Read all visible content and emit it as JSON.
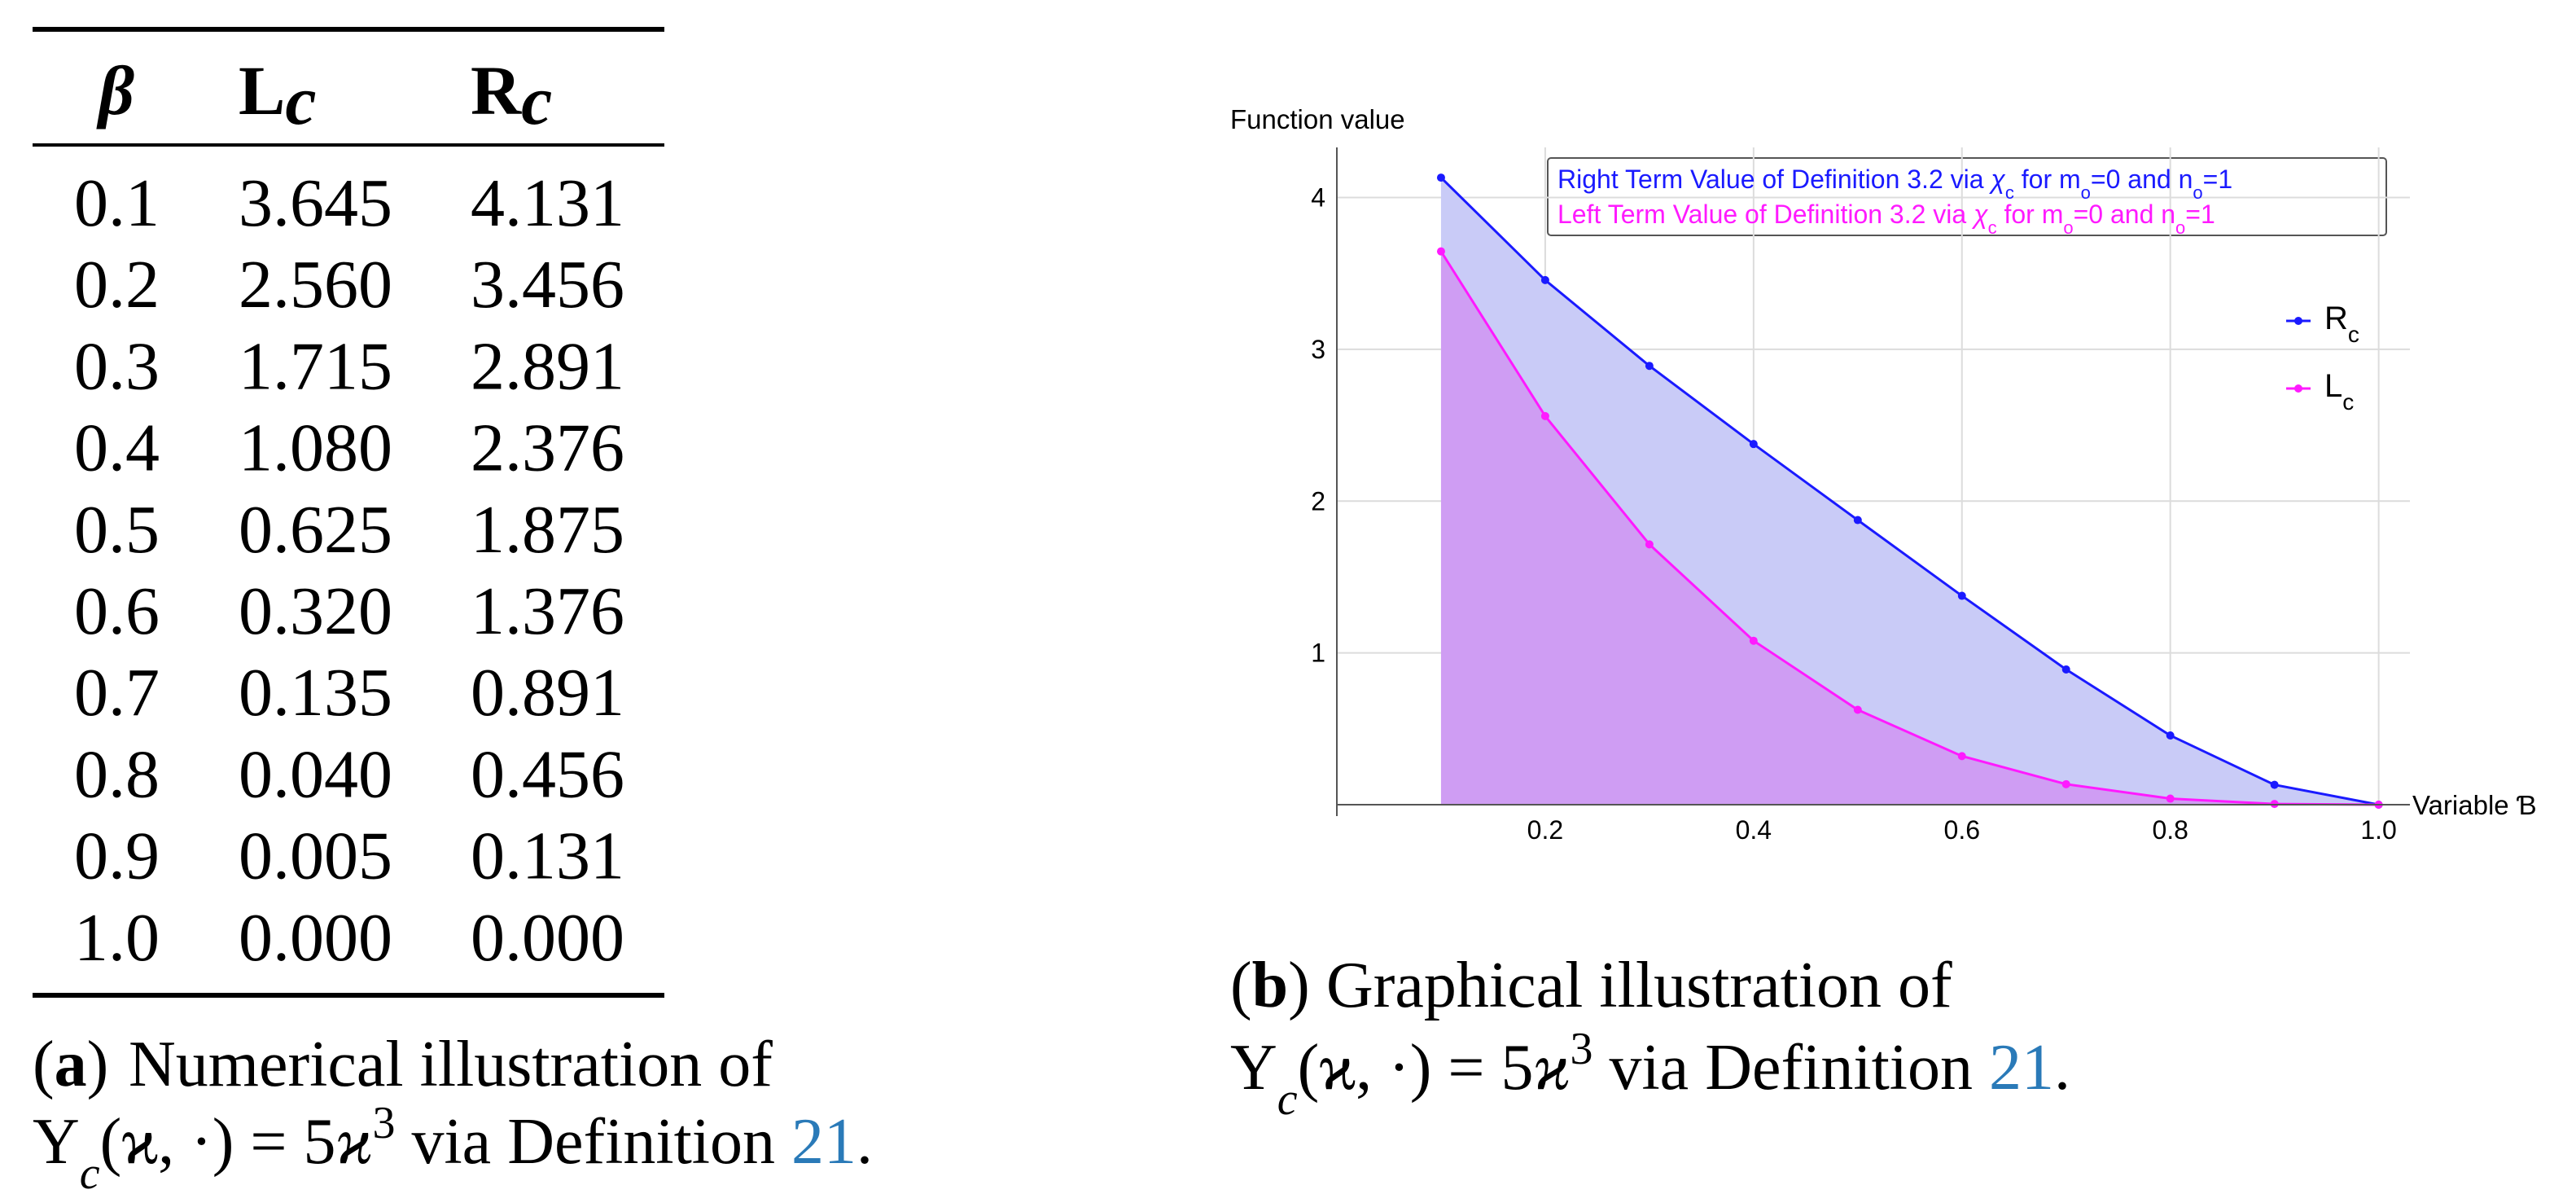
{
  "table": {
    "header": [
      "β",
      "Lc",
      "Rc"
    ],
    "rows": [
      [
        "0.1",
        "3.645",
        "4.131"
      ],
      [
        "0.2",
        "2.560",
        "3.456"
      ],
      [
        "0.3",
        "1.715",
        "2.891"
      ],
      [
        "0.4",
        "1.080",
        "2.376"
      ],
      [
        "0.5",
        "0.625",
        "1.875"
      ],
      [
        "0.6",
        "0.320",
        "1.376"
      ],
      [
        "0.7",
        "0.135",
        "0.891"
      ],
      [
        "0.8",
        "0.040",
        "0.456"
      ],
      [
        "0.9",
        "0.005",
        "0.131"
      ],
      [
        "1.0",
        "0.000",
        "0.000"
      ]
    ]
  },
  "captions": [
    {
      "label": "(a)",
      "lines": [
        "Numerical illustration of",
        "Υc(ϰ, ·) = 5ϰ3 via Definition 21."
      ]
    },
    {
      "label": "(b)",
      "lines": [
        "Graphical illustration of",
        "Υc(ϰ, ·) = 5ϰ3 via Definition 21."
      ]
    }
  ],
  "chart_data": {
    "type": "line",
    "ylabel": "Function value",
    "xlabel": "Variable Ɓ",
    "legend_box": [
      "Right Term Value of Definition 3.2 via χc for mo=0 and no=1",
      "Left Term Value of Definition 3.2 via χc for mo=0 and no=1"
    ],
    "x": [
      0.1,
      0.2,
      0.3,
      0.4,
      0.5,
      0.6,
      0.7,
      0.8,
      0.9,
      1.0
    ],
    "series": [
      {
        "name": "Rc",
        "color": "#1a1aff",
        "fill_color": "#c9cbf7",
        "values": [
          4.131,
          3.456,
          2.891,
          2.376,
          1.875,
          1.376,
          0.891,
          0.456,
          0.131,
          0
        ]
      },
      {
        "name": "Lc",
        "color": "#ff1aff",
        "fill_color": "#cf9df3",
        "values": [
          3.645,
          2.56,
          1.715,
          1.08,
          0.625,
          0.32,
          0.135,
          0.04,
          0.005,
          0
        ]
      }
    ],
    "xlim": [
      0,
      1.03
    ],
    "ylim": [
      0,
      4.33
    ],
    "xticks": [
      0.2,
      0.4,
      0.6,
      0.8,
      {
        "value": 1,
        "label": "1.0"
      }
    ],
    "yticks": [
      1,
      2,
      3,
      4
    ],
    "grid": true,
    "legend": "right"
  }
}
